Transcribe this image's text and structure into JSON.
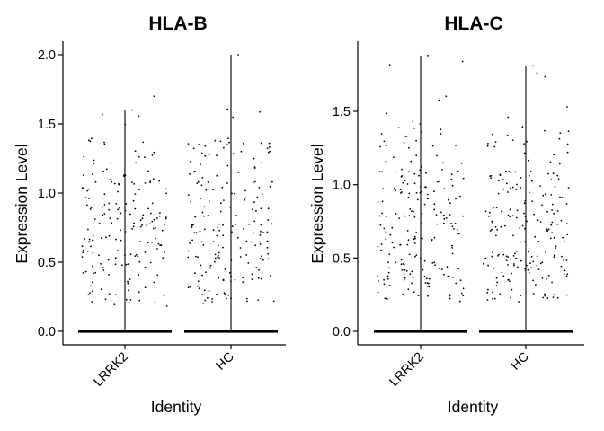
{
  "chart_data": [
    {
      "type": "violin-jitter",
      "title": "HLA-B",
      "xlabel": "Identity",
      "ylabel": "Expression Level",
      "categories": [
        "LRRK2",
        "HC"
      ],
      "ylim": [
        -0.05,
        2.1
      ],
      "yticks": [
        0.0,
        0.5,
        1.0,
        1.5,
        2.0
      ],
      "ytick_labels": [
        "0.0",
        "0.5",
        "1.0",
        "1.5",
        "2.0"
      ],
      "max_values": [
        1.6,
        2.0
      ],
      "nonzero_range": [
        0.15,
        1.7
      ],
      "nonzero_points_per_group": 190,
      "zero_inflated": true,
      "grid": false,
      "legend": "none"
    },
    {
      "type": "violin-jitter",
      "title": "HLA-C",
      "xlabel": "Identity",
      "ylabel": "Expression Level",
      "categories": [
        "LRRK2",
        "HC"
      ],
      "ylim": [
        -0.05,
        1.95
      ],
      "yticks": [
        0.0,
        0.5,
        1.0,
        1.5
      ],
      "ytick_labels": [
        "0.0",
        "0.5",
        "1.0",
        "1.5"
      ],
      "max_values": [
        1.88,
        1.81
      ],
      "nonzero_range": [
        0.15,
        1.85
      ],
      "nonzero_points_per_group": 210,
      "zero_inflated": true,
      "grid": false,
      "legend": "none"
    }
  ]
}
